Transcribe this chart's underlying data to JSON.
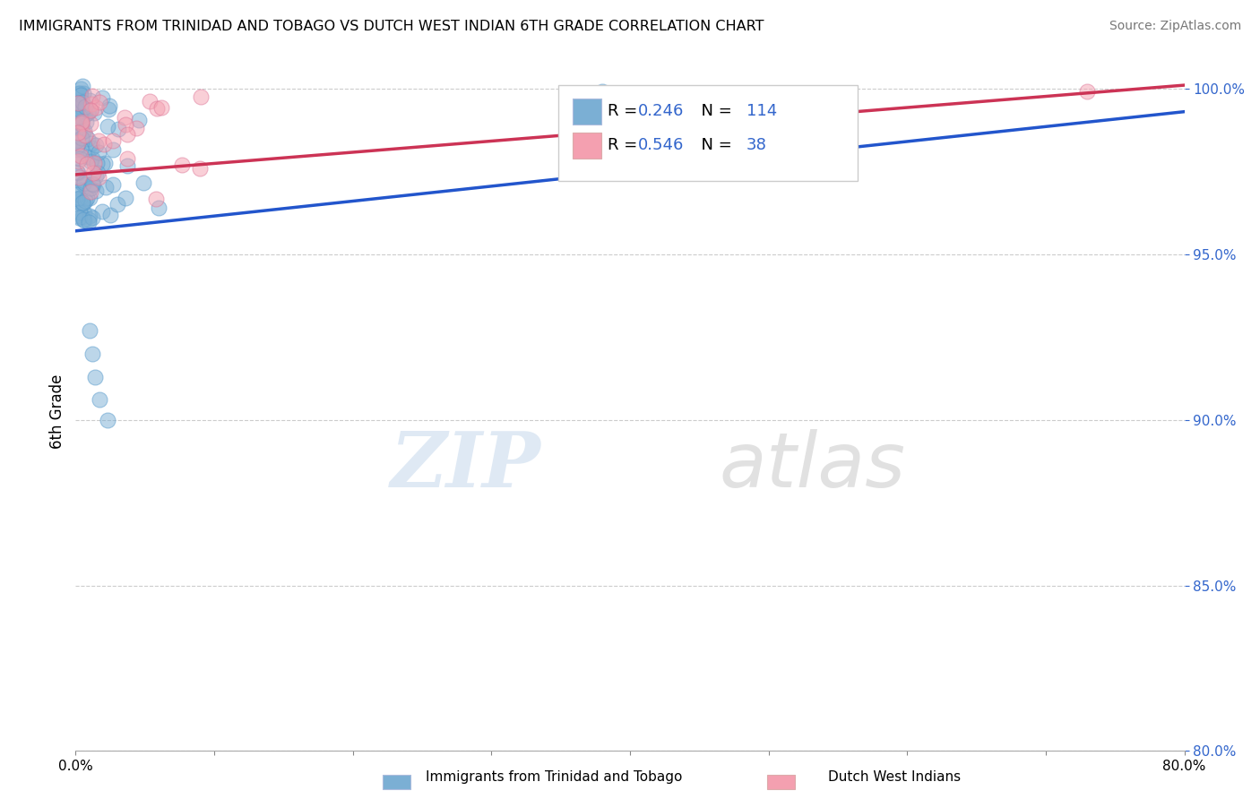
{
  "title": "IMMIGRANTS FROM TRINIDAD AND TOBAGO VS DUTCH WEST INDIAN 6TH GRADE CORRELATION CHART",
  "source": "Source: ZipAtlas.com",
  "ylabel": "6th Grade",
  "xlim": [
    0.0,
    0.8
  ],
  "ylim": [
    0.8,
    1.005
  ],
  "xticks": [
    0.0,
    0.1,
    0.2,
    0.3,
    0.4,
    0.5,
    0.6,
    0.7,
    0.8
  ],
  "xticklabels": [
    "0.0%",
    "",
    "",
    "",
    "",
    "",
    "",
    "",
    "80.0%"
  ],
  "yticks": [
    0.8,
    0.85,
    0.9,
    0.95,
    1.0
  ],
  "yticklabels": [
    "80.0%",
    "85.0%",
    "90.0%",
    "95.0%",
    "100.0%"
  ],
  "blue_color": "#7bafd4",
  "pink_color": "#f4a0b0",
  "blue_line_color": "#2255cc",
  "pink_line_color": "#cc3355",
  "R_blue": 0.246,
  "N_blue": 114,
  "R_pink": 0.546,
  "N_pink": 38,
  "legend1": "Immigrants from Trinidad and Tobago",
  "legend2": "Dutch West Indians",
  "watermark_zip": "ZIP",
  "watermark_atlas": "atlas",
  "background_color": "#ffffff",
  "grid_color": "#cccccc",
  "blue_line_y0": 0.957,
  "blue_line_y1": 0.993,
  "pink_line_y0": 0.974,
  "pink_line_y1": 1.001
}
